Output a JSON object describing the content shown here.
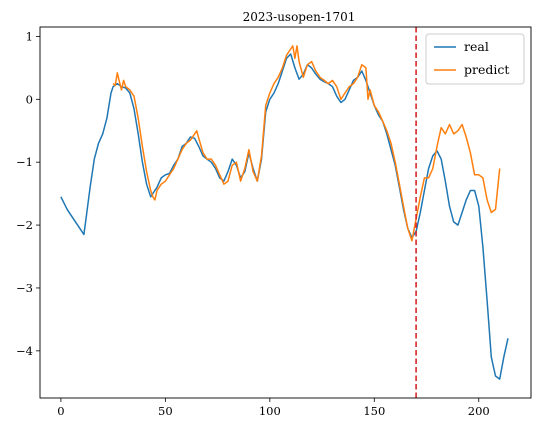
{
  "chart_data": {
    "type": "line",
    "title": "2023-usopen-1701",
    "xlabel": "",
    "ylabel": "",
    "xlim": [
      -10,
      225
    ],
    "ylim": [
      -4.75,
      1.15
    ],
    "xticks": [
      0,
      50,
      100,
      150,
      200
    ],
    "yticks": [
      -4,
      -3,
      -2,
      -1,
      0,
      1
    ],
    "grid": false,
    "legend_position": "top-right",
    "vline": {
      "x": 170,
      "color": "#d62728",
      "style": "dashed"
    },
    "series": [
      {
        "name": "real",
        "color": "#1f77b4",
        "x": [
          0,
          3,
          6,
          9,
          11,
          12,
          14,
          16,
          18,
          20,
          22,
          24,
          25,
          27,
          29,
          31,
          33,
          35,
          37,
          39,
          41,
          43,
          44,
          46,
          48,
          50,
          52,
          54,
          56,
          58,
          60,
          62,
          64,
          66,
          68,
          70,
          72,
          74,
          76,
          78,
          80,
          82,
          84,
          86,
          88,
          90,
          92,
          94,
          96,
          98,
          100,
          102,
          104,
          106,
          108,
          110,
          112,
          114,
          116,
          118,
          120,
          122,
          124,
          126,
          128,
          130,
          132,
          134,
          136,
          138,
          140,
          142,
          144,
          146,
          148,
          150,
          152,
          154,
          156,
          158,
          160,
          162,
          164,
          166,
          168,
          170,
          172,
          174,
          176,
          178,
          180,
          182,
          184,
          186,
          188,
          190,
          192,
          194,
          196,
          198,
          200,
          202,
          204,
          206,
          208,
          210,
          212,
          214
        ],
        "y": [
          -1.55,
          -1.75,
          -1.9,
          -2.05,
          -2.15,
          -1.9,
          -1.4,
          -0.95,
          -0.7,
          -0.55,
          -0.3,
          0.1,
          0.2,
          0.25,
          0.2,
          0.18,
          0.1,
          -0.15,
          -0.55,
          -1.0,
          -1.35,
          -1.55,
          -1.5,
          -1.4,
          -1.25,
          -1.2,
          -1.18,
          -1.05,
          -0.95,
          -0.75,
          -0.7,
          -0.6,
          -0.62,
          -0.75,
          -0.9,
          -0.95,
          -1.0,
          -1.1,
          -1.25,
          -1.3,
          -1.15,
          -0.95,
          -1.05,
          -1.25,
          -1.15,
          -0.85,
          -1.1,
          -1.3,
          -0.95,
          -0.2,
          0.0,
          0.1,
          0.25,
          0.45,
          0.65,
          0.72,
          0.5,
          0.32,
          0.4,
          0.55,
          0.5,
          0.4,
          0.32,
          0.28,
          0.25,
          0.2,
          0.05,
          -0.05,
          0.0,
          0.15,
          0.3,
          0.35,
          0.45,
          0.3,
          0.1,
          -0.1,
          -0.25,
          -0.35,
          -0.55,
          -0.8,
          -1.05,
          -1.4,
          -1.75,
          -2.05,
          -2.2,
          -2.1,
          -1.8,
          -1.45,
          -1.1,
          -0.9,
          -0.82,
          -0.95,
          -1.3,
          -1.7,
          -1.95,
          -2.0,
          -1.8,
          -1.6,
          -1.45,
          -1.45,
          -1.7,
          -2.35,
          -3.2,
          -4.1,
          -4.4,
          -4.45,
          -4.1,
          -3.8
        ]
      },
      {
        "name": "predict",
        "color": "#ff7f0e",
        "x": [
          25,
          26,
          27,
          28,
          29,
          30,
          31,
          33,
          35,
          37,
          39,
          41,
          43,
          44,
          45,
          46,
          48,
          50,
          52,
          54,
          56,
          58,
          60,
          62,
          64,
          65,
          66,
          68,
          70,
          72,
          74,
          76,
          78,
          80,
          82,
          84,
          86,
          88,
          90,
          92,
          94,
          96,
          98,
          100,
          102,
          104,
          106,
          108,
          110,
          111,
          112,
          113,
          114,
          116,
          118,
          120,
          122,
          124,
          126,
          128,
          130,
          132,
          134,
          136,
          138,
          140,
          142,
          144,
          146,
          147,
          148,
          150,
          152,
          154,
          156,
          158,
          160,
          162,
          164,
          166,
          168,
          170,
          172,
          174,
          176,
          178,
          180,
          182,
          184,
          186,
          188,
          190,
          192,
          194,
          196,
          198,
          200,
          202,
          204,
          206,
          208,
          210
        ],
        "y": [
          0.25,
          0.22,
          0.42,
          0.28,
          0.15,
          0.3,
          0.2,
          0.15,
          0.05,
          -0.3,
          -0.75,
          -1.15,
          -1.45,
          -1.55,
          -1.6,
          -1.45,
          -1.35,
          -1.3,
          -1.2,
          -1.1,
          -0.95,
          -0.8,
          -0.7,
          -0.65,
          -0.55,
          -0.5,
          -0.62,
          -0.85,
          -0.95,
          -0.95,
          -1.05,
          -1.2,
          -1.35,
          -1.3,
          -1.05,
          -1.0,
          -1.3,
          -1.1,
          -0.8,
          -1.15,
          -1.3,
          -0.9,
          -0.1,
          0.1,
          0.25,
          0.35,
          0.5,
          0.7,
          0.8,
          0.85,
          0.65,
          0.85,
          0.6,
          0.35,
          0.55,
          0.6,
          0.45,
          0.35,
          0.3,
          0.25,
          0.3,
          0.2,
          0.0,
          0.1,
          0.2,
          0.25,
          0.35,
          0.55,
          0.5,
          0.0,
          0.15,
          -0.1,
          -0.2,
          -0.35,
          -0.5,
          -0.7,
          -1.0,
          -1.35,
          -1.7,
          -2.05,
          -2.25,
          -1.9,
          -1.55,
          -1.25,
          -1.25,
          -1.1,
          -0.75,
          -0.45,
          -0.55,
          -0.4,
          -0.55,
          -0.5,
          -0.4,
          -0.6,
          -0.85,
          -1.2,
          -1.2,
          -1.25,
          -1.6,
          -1.8,
          -1.75,
          -1.1
        ]
      }
    ]
  }
}
